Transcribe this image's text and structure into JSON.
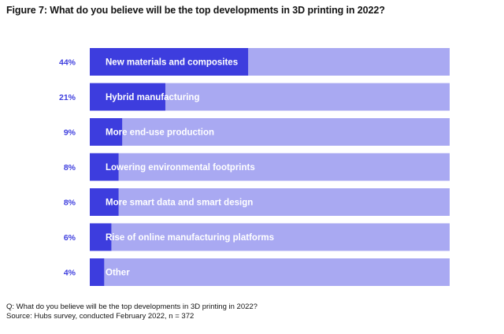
{
  "title": "Figure 7: What do you believe will be the top developments in 3D printing in 2022?",
  "footer": {
    "question": "Q: What do you believe will be the top developments in 3D printing in 2022?",
    "source": "Source: Hubs survey, conducted February 2022, n = 372"
  },
  "colors": {
    "value_bar": "#3d3dde",
    "track_bar": "#a9a9f2",
    "value_text": "#3d3dde",
    "category_text": "#ffffff"
  },
  "chart_data": {
    "type": "bar",
    "orientation": "horizontal",
    "title": "Figure 7: What do you believe will be the top developments in 3D printing in 2022?",
    "categories": [
      "New materials and composites",
      "Hybrid manufacturing",
      "More end-use production",
      "Lowering environmental footprints",
      "More smart data and smart design",
      "Rise of online manufacturing platforms",
      "Other"
    ],
    "values": [
      44,
      21,
      9,
      8,
      8,
      6,
      4
    ],
    "value_labels": [
      "44%",
      "21%",
      "9%",
      "8%",
      "8%",
      "6%",
      "4%"
    ],
    "xlim": [
      0,
      100
    ],
    "unit": "%",
    "grid": false,
    "legend": "none"
  }
}
